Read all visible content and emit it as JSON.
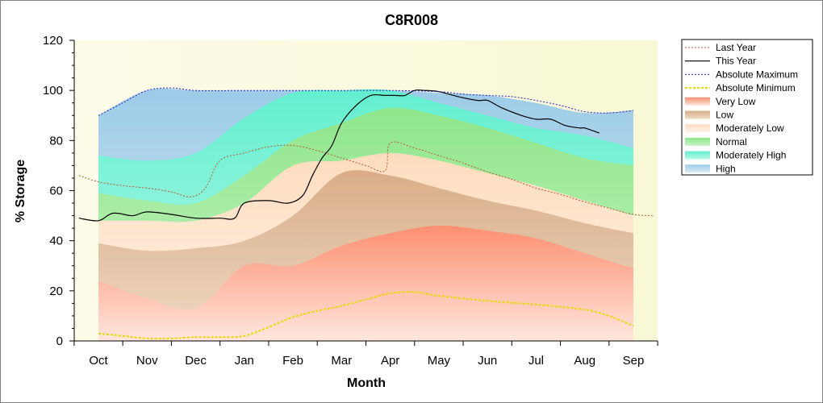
{
  "chart_data": {
    "type": "area",
    "title": "C8R008",
    "xlabel": "Month",
    "ylabel": "% Storage",
    "ylim": [
      0,
      120
    ],
    "yticks": [
      0,
      20,
      40,
      60,
      80,
      100,
      120
    ],
    "categories": [
      "Oct",
      "Nov",
      "Dec",
      "Jan",
      "Feb",
      "Mar",
      "Apr",
      "May",
      "Jun",
      "Jul",
      "Aug",
      "Sep"
    ],
    "legend_position": "right",
    "bands": {
      "x": [
        0,
        1,
        2,
        3,
        4,
        5,
        6,
        7,
        8,
        9,
        10,
        11
      ],
      "very_low_top": [
        24,
        17,
        13,
        30,
        30,
        38,
        43,
        46,
        44,
        41,
        35,
        29
      ],
      "low_top": [
        39,
        36,
        37,
        40,
        50,
        67,
        66,
        61,
        56,
        52,
        47,
        43
      ],
      "moderately_low_top": [
        48,
        48,
        48,
        55,
        70,
        72,
        75,
        72,
        67,
        62,
        56,
        50
      ],
      "normal_top": [
        59,
        56,
        55,
        66,
        80,
        87,
        93,
        90,
        85,
        79,
        73,
        70
      ],
      "moderately_high_top": [
        74,
        72,
        75,
        89,
        99,
        100,
        100,
        95,
        90,
        85,
        82,
        77
      ],
      "high_top": [
        90,
        100,
        100,
        100,
        100,
        100,
        100,
        99,
        98,
        95,
        91,
        92
      ]
    },
    "series": [
      {
        "name": "Last Year",
        "x": [
          -0.4,
          0,
          0.5,
          1,
          1.5,
          1.9,
          2.2,
          2.5,
          3,
          3.5,
          4,
          4.5,
          5,
          5.5,
          5.9,
          6,
          6.5,
          7,
          7.5,
          8,
          8.5,
          9,
          9.5,
          10,
          10.5,
          11,
          11.4
        ],
        "values": [
          66,
          63.5,
          62,
          61,
          59.5,
          57.5,
          61,
          72,
          75,
          77.5,
          78,
          76,
          73,
          70,
          68,
          79,
          77,
          74,
          71,
          67.5,
          64.5,
          61,
          58.5,
          55.5,
          53,
          50.5,
          50
        ]
      },
      {
        "name": "This Year",
        "x": [
          -0.4,
          0,
          0.3,
          0.7,
          1,
          1.5,
          2,
          2.5,
          2.8,
          3,
          3.5,
          3.9,
          4.2,
          4.4,
          4.6,
          4.8,
          5,
          5.3,
          5.6,
          5.9,
          6.1,
          6.3,
          6.5,
          6.7,
          7,
          7.4,
          7.8,
          8,
          8.3,
          8.7,
          9,
          9.3,
          9.6,
          9.9,
          10,
          10.3
        ],
        "values": [
          49,
          48,
          51,
          50,
          51.5,
          50.5,
          49,
          49,
          49,
          55,
          56,
          55,
          58,
          66,
          73,
          78,
          87,
          94,
          98,
          98,
          98,
          98,
          100,
          100,
          99.5,
          97.5,
          96,
          96,
          93,
          90,
          88.5,
          88.5,
          86,
          85,
          85,
          83
        ]
      },
      {
        "name": "Absolute Maximum",
        "x": [
          0,
          0.5,
          1,
          1.5,
          2,
          3,
          4,
          5,
          6,
          7,
          7.5,
          8,
          8.5,
          9,
          9.5,
          10,
          10.5,
          11
        ],
        "values": [
          90,
          95,
          100,
          101,
          100,
          100,
          100,
          100,
          100,
          99.5,
          98.5,
          98,
          97.5,
          96,
          94,
          91.5,
          91,
          92
        ]
      },
      {
        "name": "Absolute Minimum",
        "x": [
          0,
          0.5,
          1,
          1.5,
          2,
          2.5,
          3,
          3.5,
          4,
          4.5,
          5,
          5.5,
          6,
          6.5,
          7,
          8,
          9,
          10,
          10.5,
          11
        ],
        "values": [
          3,
          2,
          1,
          1,
          1.5,
          1.5,
          2,
          5.5,
          9.5,
          12,
          14,
          16.5,
          19,
          19.5,
          18,
          16,
          14.5,
          12.5,
          10,
          6
        ]
      }
    ],
    "legend": [
      "Last Year",
      "This Year",
      "Absolute Maximum",
      "Absolute Minimum",
      "Very Low",
      "Low",
      "Moderately Low",
      "Normal",
      "Moderately High",
      "High"
    ],
    "colors": {
      "plot_background_left": "#fbfbe6",
      "plot_background_right": "#f9f9d8",
      "very_low": "#fb9a7e",
      "low": "#dfb898",
      "moderately_low": "#fde6cf",
      "normal": "#9eeb9c",
      "moderately_high": "#7ff2d6",
      "high": "#aed3ea",
      "last_year": "#b45a2c",
      "this_year": "#000000",
      "absolute_maximum": "#2020c8",
      "absolute_minimum": "#e6d800"
    }
  }
}
